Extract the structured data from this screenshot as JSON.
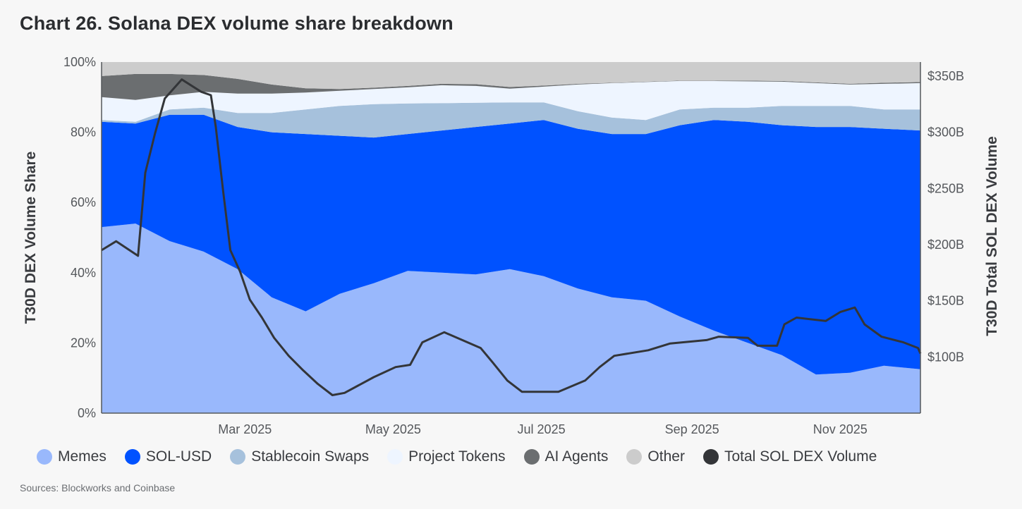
{
  "title": "Chart 26. Solana DEX volume share breakdown",
  "source": "Sources: Blockworks and Coinbase",
  "chart_data": {
    "type": "area",
    "stacked": true,
    "normalized_percent": true,
    "xlim": [
      "2025-01-01",
      "2025-12-04"
    ],
    "x_ticks": [
      {
        "date": "2025-03-01",
        "label": "Mar 2025"
      },
      {
        "date": "2025-05-01",
        "label": "May 2025"
      },
      {
        "date": "2025-07-01",
        "label": "Jul 2025"
      },
      {
        "date": "2025-09-01",
        "label": "Sep 2025"
      },
      {
        "date": "2025-11-01",
        "label": "Nov 2025"
      }
    ],
    "y_left": {
      "label": "T30D DEX Volume Share",
      "range": [
        0,
        100
      ],
      "ticks": [
        "0%",
        "20%",
        "40%",
        "60%",
        "80%",
        "100%"
      ]
    },
    "y_right": {
      "label": "T30D Total SOL DEX Volume",
      "range_billions": [
        50,
        362.5
      ],
      "ticks": [
        {
          "value": 100,
          "label": "$100B"
        },
        {
          "value": 150,
          "label": "$150B"
        },
        {
          "value": 200,
          "label": "$200B"
        },
        {
          "value": 250,
          "label": "$250B"
        },
        {
          "value": 300,
          "label": "$300B"
        },
        {
          "value": 350,
          "label": "$350B"
        }
      ]
    },
    "grid": false,
    "legend_placement": "bottom",
    "dates": [
      "2025-01-01",
      "2025-01-15",
      "2025-01-29",
      "2025-02-12",
      "2025-02-26",
      "2025-03-12",
      "2025-03-26",
      "2025-04-09",
      "2025-04-23",
      "2025-05-07",
      "2025-05-21",
      "2025-06-04",
      "2025-06-18",
      "2025-07-02",
      "2025-07-16",
      "2025-07-30",
      "2025-08-13",
      "2025-08-27",
      "2025-09-10",
      "2025-09-24",
      "2025-10-08",
      "2025-10-22",
      "2025-11-05",
      "2025-11-19",
      "2025-12-03"
    ],
    "series": [
      {
        "name": "Memes",
        "color": "#99b8fc",
        "values": [
          53,
          54,
          49,
          46,
          41,
          33,
          29,
          34,
          37,
          40.5,
          40,
          39.5,
          41,
          39,
          35.5,
          33,
          32,
          27.5,
          23.5,
          20,
          16.5,
          11,
          11.5,
          13.5,
          12.5
        ]
      },
      {
        "name": "SOL-USD",
        "color": "#0052ff",
        "values": [
          30,
          28.5,
          36,
          39,
          40.5,
          47,
          50.5,
          45,
          41.5,
          39,
          40.5,
          42,
          41.5,
          44.5,
          45.5,
          46.5,
          47.5,
          54.5,
          60,
          63,
          65.5,
          70.5,
          70,
          67.5,
          68
        ]
      },
      {
        "name": "Stablecoin Swaps",
        "color": "#a6c1dc",
        "values": [
          0.5,
          0.5,
          1.5,
          2,
          4,
          5.5,
          7,
          8.5,
          9.5,
          8.7,
          7.8,
          6.9,
          6,
          5,
          5,
          4.7,
          4,
          4.5,
          3.5,
          4,
          5.5,
          6,
          6,
          5.5,
          6
        ]
      },
      {
        "name": "Project Tokens",
        "color": "#eef5ff",
        "values": [
          6.5,
          6.2,
          4,
          4.5,
          5.5,
          5.5,
          4.8,
          4.3,
          4.3,
          4.6,
          5.1,
          4.8,
          3.9,
          4.5,
          7.6,
          9.8,
          10.8,
          8.1,
          7.6,
          7.5,
          6.9,
          6.5,
          6.1,
          7.3,
          7.5
        ]
      },
      {
        "name": "AI Agents",
        "color": "#6b6e70",
        "values": [
          6,
          7.4,
          6.1,
          4.8,
          4.2,
          2.6,
          1.2,
          0.5,
          0.4,
          0.4,
          0.4,
          0.5,
          0.5,
          0.3,
          0.2,
          0.1,
          0.1,
          0.1,
          0.1,
          0.2,
          0.2,
          0.2,
          0.2,
          0.3,
          0.3
        ]
      },
      {
        "name": "Other",
        "color": "#cccccc",
        "values": [
          4,
          3.4,
          3.4,
          3.7,
          4.8,
          6.4,
          7.5,
          7.7,
          7.3,
          6.8,
          6.2,
          6.3,
          7.1,
          6.7,
          6.2,
          5.9,
          5.6,
          5.3,
          5.3,
          5.3,
          5.4,
          5.8,
          6.2,
          5.9,
          5.7
        ]
      }
    ],
    "line_series": {
      "name": "Total SOL DEX Volume",
      "color": "#333538",
      "axis": "right",
      "unit": "USD billions",
      "points": [
        [
          "2025-01-01",
          195
        ],
        [
          "2025-01-07",
          203
        ],
        [
          "2025-01-16",
          190
        ],
        [
          "2025-01-19",
          264
        ],
        [
          "2025-01-23",
          299
        ],
        [
          "2025-01-27",
          330
        ],
        [
          "2025-02-03",
          347
        ],
        [
          "2025-02-11",
          336
        ],
        [
          "2025-02-15",
          333
        ],
        [
          "2025-02-17",
          305
        ],
        [
          "2025-02-20",
          248
        ],
        [
          "2025-02-23",
          195
        ],
        [
          "2025-02-27",
          176
        ],
        [
          "2025-03-03",
          151
        ],
        [
          "2025-03-08",
          135
        ],
        [
          "2025-03-13",
          117
        ],
        [
          "2025-03-19",
          101
        ],
        [
          "2025-03-25",
          88
        ],
        [
          "2025-03-31",
          76
        ],
        [
          "2025-04-06",
          66
        ],
        [
          "2025-04-11",
          68
        ],
        [
          "2025-04-23",
          82
        ],
        [
          "2025-05-02",
          91
        ],
        [
          "2025-05-08",
          93
        ],
        [
          "2025-05-13",
          113
        ],
        [
          "2025-05-22",
          122
        ],
        [
          "2025-06-06",
          108
        ],
        [
          "2025-06-11",
          95
        ],
        [
          "2025-06-17",
          79
        ],
        [
          "2025-06-23",
          69
        ],
        [
          "2025-07-08",
          69
        ],
        [
          "2025-07-19",
          79
        ],
        [
          "2025-07-25",
          91
        ],
        [
          "2025-07-31",
          101
        ],
        [
          "2025-08-14",
          106
        ],
        [
          "2025-08-23",
          112
        ],
        [
          "2025-09-07",
          115
        ],
        [
          "2025-09-12",
          118
        ],
        [
          "2025-09-24",
          117
        ],
        [
          "2025-09-28",
          110
        ],
        [
          "2025-10-06",
          110
        ],
        [
          "2025-10-09",
          129
        ],
        [
          "2025-10-14",
          135
        ],
        [
          "2025-10-26",
          132
        ],
        [
          "2025-11-01",
          140
        ],
        [
          "2025-11-07",
          144
        ],
        [
          "2025-11-11",
          129
        ],
        [
          "2025-11-18",
          118
        ],
        [
          "2025-11-27",
          113
        ],
        [
          "2025-12-03",
          108
        ],
        [
          "2025-12-04",
          103
        ]
      ]
    }
  },
  "legend": [
    {
      "label": "Memes",
      "color": "#99b8fc"
    },
    {
      "label": "SOL-USD",
      "color": "#0052ff"
    },
    {
      "label": "Stablecoin Swaps",
      "color": "#a6c1dc"
    },
    {
      "label": "Project Tokens",
      "color": "#eef5ff"
    },
    {
      "label": "AI Agents",
      "color": "#6b6e70"
    },
    {
      "label": "Other",
      "color": "#cccccc"
    },
    {
      "label": "Total SOL DEX Volume",
      "color": "#333538"
    }
  ]
}
